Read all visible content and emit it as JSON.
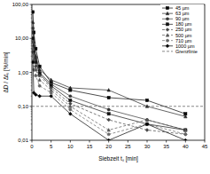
{
  "chart_data": {
    "type": "line",
    "log": "y",
    "grid": false,
    "legend": "top-right",
    "x_label": "Siebzeit tₛ [min]",
    "y_label": "ΔD / Δtₛ [%/min]",
    "x": [
      0.25,
      0.5,
      1,
      2,
      5,
      10,
      20,
      30,
      40
    ],
    "xlim": [
      0,
      45
    ],
    "xticks": [
      0,
      5,
      10,
      15,
      20,
      25,
      30,
      35,
      40,
      45
    ],
    "ylim": [
      0.01,
      100
    ],
    "yticks": [
      {
        "value": 0.01,
        "label": "0,01"
      },
      {
        "value": 0.1,
        "label": "0,10"
      },
      {
        "value": 1,
        "label": "1,00"
      },
      {
        "value": 10,
        "label": "10,00"
      },
      {
        "value": 100,
        "label": "100,00"
      }
    ],
    "series": [
      {
        "name": "45 µm",
        "color": "#000000",
        "marker": "square",
        "line_style": "solid",
        "values": [
          60,
          15,
          5,
          1.5,
          0.5,
          0.3,
          0.18,
          0.15,
          0.06
        ]
      },
      {
        "name": "63 µm",
        "color": "#222222",
        "marker": "triangle",
        "line_style": "solid",
        "values": [
          30,
          8,
          3,
          1.2,
          0.6,
          0.35,
          0.3,
          0.1,
          0.05
        ]
      },
      {
        "name": "90 µm",
        "color": "#333333",
        "marker": "circle",
        "line_style": "solid",
        "values": [
          20,
          6,
          2.5,
          1,
          0.45,
          0.2,
          0.08,
          0.04,
          0.02
        ]
      },
      {
        "name": "180 µm",
        "color": "#111111",
        "marker": "square",
        "line_style": "solid",
        "values": [
          10,
          4,
          2,
          0.9,
          0.4,
          0.15,
          0.06,
          0.03,
          0.02
        ]
      },
      {
        "name": "250 µm",
        "color": "#444444",
        "marker": "diamond",
        "line_style": "dashed",
        "values": [
          8,
          3.5,
          1.5,
          0.8,
          0.35,
          0.12,
          0.04,
          0.02,
          0.015
        ]
      },
      {
        "name": "500 µm",
        "color": "#555555",
        "marker": "triangle",
        "line_style": "dashed",
        "values": [
          5,
          2.5,
          1.2,
          0.6,
          0.3,
          0.1,
          0.02,
          0.04,
          0.02
        ]
      },
      {
        "name": "710 µm",
        "color": "#666666",
        "marker": "circle",
        "line_style": "dashed",
        "values": [
          3,
          1.2,
          0.8,
          0.4,
          0.25,
          0.08,
          0.015,
          0.03,
          0.015
        ]
      },
      {
        "name": "1000 µm",
        "color": "#000000",
        "marker": "diamond",
        "line_style": "solid",
        "values": [
          2,
          0.25,
          0.22,
          0.2,
          0.2,
          0.06,
          0.01,
          0.03,
          0.01
        ]
      },
      {
        "name": "Grenzlinie",
        "color": "#555555",
        "marker": "none",
        "line_style": "dashed",
        "x": [
          0,
          45
        ],
        "values": [
          0.1,
          0.1
        ]
      }
    ]
  }
}
